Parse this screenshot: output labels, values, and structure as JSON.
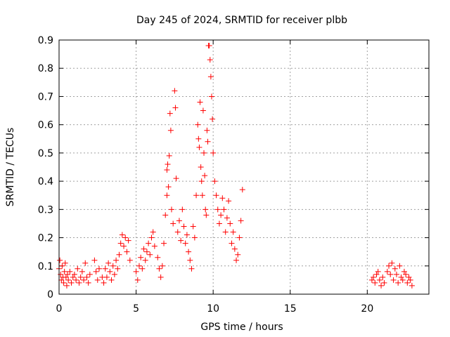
{
  "chart_data": {
    "type": "scatter",
    "title": "Day 245 of 2024, SRMTID for receiver plbb",
    "xlabel": "GPS time / hours",
    "ylabel": "SRMTID / TECUs",
    "xlim": [
      0,
      24
    ],
    "ylim": [
      0,
      0.9
    ],
    "xticks": [
      0,
      5,
      10,
      15,
      20
    ],
    "xtick_labels": [
      "0",
      "5",
      "10",
      "15",
      "20"
    ],
    "yticks": [
      0,
      0.1,
      0.2,
      0.3,
      0.4,
      0.5,
      0.6,
      0.7,
      0.8,
      0.9
    ],
    "ytick_labels": [
      "0",
      "0.1",
      "0.2",
      "0.3",
      "0.4",
      "0.5",
      "0.6",
      "0.7",
      "0.8",
      "0.9"
    ],
    "grid": true,
    "marker": "plus",
    "series": [
      {
        "name": "SRMTID",
        "color": "#ff0000",
        "points": [
          [
            0.0,
            0.09
          ],
          [
            0.05,
            0.12
          ],
          [
            0.1,
            0.07
          ],
          [
            0.15,
            0.05
          ],
          [
            0.2,
            0.1
          ],
          [
            0.25,
            0.06
          ],
          [
            0.3,
            0.04
          ],
          [
            0.35,
            0.08
          ],
          [
            0.4,
            0.11
          ],
          [
            0.45,
            0.06
          ],
          [
            0.5,
            0.03
          ],
          [
            0.55,
            0.07
          ],
          [
            0.6,
            0.05
          ],
          [
            0.7,
            0.08
          ],
          [
            0.8,
            0.04
          ],
          [
            0.9,
            0.06
          ],
          [
            1.0,
            0.07
          ],
          [
            1.1,
            0.05
          ],
          [
            1.2,
            0.09
          ],
          [
            1.3,
            0.04
          ],
          [
            1.4,
            0.06
          ],
          [
            1.5,
            0.08
          ],
          [
            1.6,
            0.05
          ],
          [
            1.7,
            0.11
          ],
          [
            1.8,
            0.06
          ],
          [
            1.9,
            0.04
          ],
          [
            2.0,
            0.07
          ],
          [
            2.3,
            0.12
          ],
          [
            2.4,
            0.08
          ],
          [
            2.5,
            0.05
          ],
          [
            2.6,
            0.09
          ],
          [
            2.8,
            0.06
          ],
          [
            2.9,
            0.04
          ],
          [
            3.0,
            0.09
          ],
          [
            3.1,
            0.06
          ],
          [
            3.2,
            0.11
          ],
          [
            3.3,
            0.08
          ],
          [
            3.4,
            0.05
          ],
          [
            3.5,
            0.1
          ],
          [
            3.6,
            0.07
          ],
          [
            3.7,
            0.12
          ],
          [
            3.8,
            0.09
          ],
          [
            3.9,
            0.14
          ],
          [
            4.0,
            0.18
          ],
          [
            4.1,
            0.21
          ],
          [
            4.2,
            0.17
          ],
          [
            4.3,
            0.2
          ],
          [
            4.4,
            0.15
          ],
          [
            4.5,
            0.19
          ],
          [
            4.6,
            0.12
          ],
          [
            5.0,
            0.08
          ],
          [
            5.1,
            0.05
          ],
          [
            5.2,
            0.1
          ],
          [
            5.3,
            0.13
          ],
          [
            5.4,
            0.09
          ],
          [
            5.5,
            0.16
          ],
          [
            5.6,
            0.12
          ],
          [
            5.7,
            0.15
          ],
          [
            5.8,
            0.18
          ],
          [
            5.9,
            0.14
          ],
          [
            6.0,
            0.2
          ],
          [
            6.1,
            0.22
          ],
          [
            6.2,
            0.17
          ],
          [
            6.4,
            0.13
          ],
          [
            6.5,
            0.09
          ],
          [
            6.6,
            0.06
          ],
          [
            6.7,
            0.1
          ],
          [
            6.8,
            0.18
          ],
          [
            6.9,
            0.28
          ],
          [
            7.0,
            0.35
          ],
          [
            7.0,
            0.44
          ],
          [
            7.05,
            0.46
          ],
          [
            7.1,
            0.38
          ],
          [
            7.15,
            0.49
          ],
          [
            7.2,
            0.64
          ],
          [
            7.25,
            0.58
          ],
          [
            7.3,
            0.3
          ],
          [
            7.4,
            0.25
          ],
          [
            7.5,
            0.72
          ],
          [
            7.55,
            0.66
          ],
          [
            7.6,
            0.41
          ],
          [
            7.7,
            0.22
          ],
          [
            7.8,
            0.26
          ],
          [
            7.9,
            0.19
          ],
          [
            8.0,
            0.3
          ],
          [
            8.1,
            0.24
          ],
          [
            8.2,
            0.18
          ],
          [
            8.3,
            0.21
          ],
          [
            8.4,
            0.15
          ],
          [
            8.5,
            0.12
          ],
          [
            8.6,
            0.09
          ],
          [
            8.7,
            0.24
          ],
          [
            8.8,
            0.2
          ],
          [
            8.9,
            0.35
          ],
          [
            9.0,
            0.6
          ],
          [
            9.05,
            0.55
          ],
          [
            9.1,
            0.52
          ],
          [
            9.15,
            0.68
          ],
          [
            9.2,
            0.45
          ],
          [
            9.25,
            0.4
          ],
          [
            9.3,
            0.35
          ],
          [
            9.35,
            0.65
          ],
          [
            9.4,
            0.5
          ],
          [
            9.45,
            0.42
          ],
          [
            9.5,
            0.3
          ],
          [
            9.55,
            0.28
          ],
          [
            9.6,
            0.58
          ],
          [
            9.65,
            0.54
          ],
          [
            9.7,
            0.88
          ],
          [
            9.75,
            0.88
          ],
          [
            9.8,
            0.83
          ],
          [
            9.85,
            0.77
          ],
          [
            9.9,
            0.7
          ],
          [
            9.95,
            0.62
          ],
          [
            10.0,
            0.5
          ],
          [
            10.1,
            0.4
          ],
          [
            10.2,
            0.35
          ],
          [
            10.3,
            0.3
          ],
          [
            10.4,
            0.25
          ],
          [
            10.5,
            0.28
          ],
          [
            10.6,
            0.34
          ],
          [
            10.7,
            0.3
          ],
          [
            10.8,
            0.22
          ],
          [
            10.9,
            0.27
          ],
          [
            11.0,
            0.33
          ],
          [
            11.1,
            0.25
          ],
          [
            11.2,
            0.18
          ],
          [
            11.3,
            0.22
          ],
          [
            11.4,
            0.16
          ],
          [
            11.5,
            0.12
          ],
          [
            11.6,
            0.14
          ],
          [
            11.7,
            0.2
          ],
          [
            11.8,
            0.26
          ],
          [
            11.9,
            0.37
          ],
          [
            20.3,
            0.05
          ],
          [
            20.4,
            0.06
          ],
          [
            20.5,
            0.04
          ],
          [
            20.6,
            0.07
          ],
          [
            20.7,
            0.08
          ],
          [
            20.8,
            0.05
          ],
          [
            20.9,
            0.03
          ],
          [
            21.0,
            0.06
          ],
          [
            21.1,
            0.04
          ],
          [
            21.3,
            0.08
          ],
          [
            21.4,
            0.1
          ],
          [
            21.5,
            0.07
          ],
          [
            21.6,
            0.11
          ],
          [
            21.7,
            0.05
          ],
          [
            21.8,
            0.09
          ],
          [
            21.9,
            0.07
          ],
          [
            22.0,
            0.04
          ],
          [
            22.1,
            0.1
          ],
          [
            22.2,
            0.06
          ],
          [
            22.3,
            0.05
          ],
          [
            22.4,
            0.08
          ],
          [
            22.5,
            0.07
          ],
          [
            22.6,
            0.04
          ],
          [
            22.7,
            0.06
          ],
          [
            22.8,
            0.05
          ],
          [
            22.9,
            0.03
          ]
        ]
      }
    ]
  }
}
